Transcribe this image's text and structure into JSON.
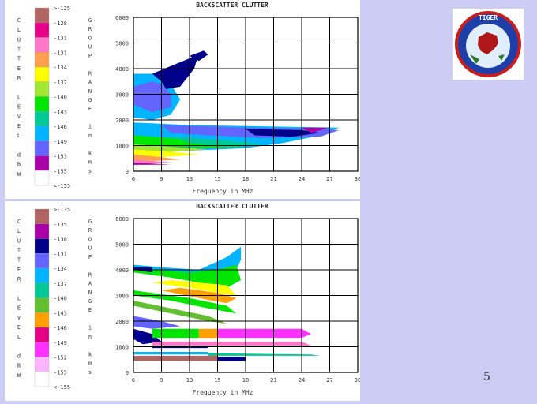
{
  "page_number": "5",
  "logo": {
    "text": "TIGER",
    "icon": "tiger-radar-logo-icon",
    "colors": {
      "ring": "#1e3fa8",
      "inner": "#dfeefa",
      "land": "#b01818",
      "outer_ring": "#c81e1e"
    }
  },
  "colors": {
    "background": "#ccccf5",
    "panel": "#ffffff"
  },
  "chart_data": [
    {
      "type": "heatmap",
      "title": "BACKSCATTER CLUTTER",
      "xlabel": "Frequency in MHz",
      "ylabel": "GROUP RANGE in kms",
      "legend_label": "CLUTTER LEVEL dBW",
      "x_ticks": [
        "6",
        "9",
        "13",
        "15",
        "18",
        "21",
        "24",
        "27",
        "30"
      ],
      "y_ticks": [
        "0",
        "1000",
        "2000",
        "3000",
        "4000",
        "5000",
        "6000"
      ],
      "xlim": [
        6,
        30
      ],
      "ylim": [
        0,
        6000
      ],
      "grid": true,
      "legend": [
        {
          "label": ">-125",
          "color": "#b06464"
        },
        {
          "label": "-128",
          "color": "#e60087"
        },
        {
          "label": "-131",
          "color": "#ff78c8"
        },
        {
          "label": "-131",
          "color": "#ffa050"
        },
        {
          "label": "-134",
          "color": "#ffff00"
        },
        {
          "label": "-137",
          "color": "#a0e632"
        },
        {
          "label": "-140",
          "color": "#00e600"
        },
        {
          "label": "-143",
          "color": "#00c896"
        },
        {
          "label": "-146",
          "color": "#00b4ff"
        },
        {
          "label": "-149",
          "color": "#6464ff"
        },
        {
          "label": "-153",
          "color": "#aa00aa"
        },
        {
          "label": "-155",
          "color": "#ffffff"
        },
        {
          "label": "<-155",
          "color": "#ffffff"
        }
      ],
      "regions": [
        {
          "color": "#00b4ff",
          "points": [
            [
              6,
              3800
            ],
            [
              9,
              3800
            ],
            [
              10,
              3400
            ],
            [
              11,
              2800
            ],
            [
              10,
              2200
            ],
            [
              8,
              2000
            ],
            [
              6,
              2100
            ]
          ]
        },
        {
          "color": "#6464ff",
          "points": [
            [
              6,
              3300
            ],
            [
              8,
              3500
            ],
            [
              9,
              3400
            ],
            [
              10,
              3000
            ],
            [
              10,
              2500
            ],
            [
              8,
              2300
            ],
            [
              6,
              2600
            ]
          ]
        },
        {
          "color": "#00008b",
          "points": [
            [
              8,
              3800
            ],
            [
              10,
              4100
            ],
            [
              12,
              4400
            ],
            [
              13,
              4600
            ],
            [
              12.5,
              4000
            ],
            [
              11,
              3300
            ],
            [
              9.5,
              3200
            ],
            [
              9,
              3500
            ]
          ]
        },
        {
          "color": "#00008b",
          "points": [
            [
              12,
              4500
            ],
            [
              13.5,
              4700
            ],
            [
              14,
              4550
            ],
            [
              13,
              4300
            ]
          ]
        },
        {
          "color": "#00b4ff",
          "points": [
            [
              6,
              1900
            ],
            [
              12,
              1800
            ],
            [
              20,
              1750
            ],
            [
              28,
              1700
            ],
            [
              26,
              1400
            ],
            [
              22,
              1100
            ],
            [
              18,
              900
            ],
            [
              12,
              800
            ],
            [
              6,
              1200
            ]
          ]
        },
        {
          "color": "#6464ff",
          "points": [
            [
              9,
              1800
            ],
            [
              18,
              1700
            ],
            [
              26,
              1650
            ],
            [
              28,
              1600
            ],
            [
              26,
              1350
            ],
            [
              20,
              1300
            ],
            [
              14,
              1400
            ],
            [
              10,
              1500
            ]
          ]
        },
        {
          "color": "#00008b",
          "points": [
            [
              18,
              1650
            ],
            [
              24,
              1600
            ],
            [
              26,
              1500
            ],
            [
              23,
              1350
            ],
            [
              19,
              1400
            ]
          ]
        },
        {
          "color": "#aa00aa",
          "points": [
            [
              24,
              1700
            ],
            [
              27,
              1700
            ],
            [
              25,
              1500
            ]
          ]
        },
        {
          "color": "#00e600",
          "points": [
            [
              6,
              1400
            ],
            [
              10,
              1300
            ],
            [
              14,
              1100
            ],
            [
              18,
              950
            ],
            [
              14,
              900
            ],
            [
              10,
              950
            ],
            [
              6,
              1050
            ]
          ]
        },
        {
          "color": "#00c896",
          "points": [
            [
              10,
              1350
            ],
            [
              16,
              1200
            ],
            [
              20,
              1050
            ],
            [
              16,
              950
            ],
            [
              12,
              1100
            ]
          ]
        },
        {
          "color": "#a0e632",
          "points": [
            [
              6,
              1050
            ],
            [
              10,
              950
            ],
            [
              14,
              850
            ],
            [
              10,
              750
            ],
            [
              6,
              800
            ]
          ]
        },
        {
          "color": "#ffff00",
          "points": [
            [
              6,
              850
            ],
            [
              10,
              750
            ],
            [
              13,
              650
            ],
            [
              9,
              550
            ],
            [
              6,
              600
            ]
          ]
        },
        {
          "color": "#ffa050",
          "points": [
            [
              6,
              650
            ],
            [
              9,
              550
            ],
            [
              11,
              450
            ],
            [
              8,
              400
            ],
            [
              6,
              420
            ]
          ]
        },
        {
          "color": "#ff78c8",
          "points": [
            [
              6,
              450
            ],
            [
              8,
              400
            ],
            [
              10,
              350
            ],
            [
              8,
              300
            ],
            [
              6,
              320
            ]
          ]
        },
        {
          "color": "#aa00aa",
          "points": [
            [
              6,
              330
            ],
            [
              8,
              300
            ],
            [
              10,
              260
            ],
            [
              6,
              250
            ]
          ]
        }
      ]
    },
    {
      "type": "heatmap",
      "title": "BACKSCATTER CLUTTER",
      "xlabel": "Frequency in MHz",
      "ylabel": "GROUP RANGE in kms",
      "legend_label": "CLUTTER LEVEL dBW",
      "x_ticks": [
        "6",
        "9",
        "13",
        "15",
        "18",
        "21",
        "24",
        "27",
        "30"
      ],
      "y_ticks": [
        "0",
        "1000",
        "2000",
        "3000",
        "4000",
        "5000",
        "6000"
      ],
      "xlim": [
        6,
        30
      ],
      "ylim": [
        0,
        6000
      ],
      "grid": true,
      "legend": [
        {
          "label": ">-135",
          "color": "#b06464"
        },
        {
          "label": "-135",
          "color": "#aa00aa"
        },
        {
          "label": "-138",
          "color": "#00008b"
        },
        {
          "label": "-131",
          "color": "#6464ff"
        },
        {
          "label": "-134",
          "color": "#00b4ff"
        },
        {
          "label": "-137",
          "color": "#00c896"
        },
        {
          "label": "-140",
          "color": "#64be32"
        },
        {
          "label": "-143",
          "color": "#ffa000"
        },
        {
          "label": "-146",
          "color": "#e60087"
        },
        {
          "label": "-149",
          "color": "#ff32ff"
        },
        {
          "label": "-152",
          "color": "#ffb4ff"
        },
        {
          "label": "-155",
          "color": "#ffffff"
        },
        {
          "label": "<-155",
          "color": "#ffffff"
        }
      ],
      "regions": [
        {
          "color": "#00b4ff",
          "points": [
            [
              6,
              4000
            ],
            [
              9,
              3950
            ],
            [
              12,
              3800
            ],
            [
              15,
              3700
            ],
            [
              17,
              4000
            ],
            [
              17.5,
              4400
            ],
            [
              17.5,
              4900
            ],
            [
              16,
              4500
            ],
            [
              13,
              4000
            ],
            [
              9,
              4100
            ],
            [
              6,
              4200
            ]
          ]
        },
        {
          "color": "#00e600",
          "points": [
            [
              6,
              3900
            ],
            [
              10,
              3700
            ],
            [
              13,
              3500
            ],
            [
              16,
              3300
            ],
            [
              17.5,
              3600
            ],
            [
              17,
              4200
            ],
            [
              15,
              4000
            ],
            [
              12,
              3900
            ],
            [
              8,
              4000
            ],
            [
              6,
              4000
            ]
          ]
        },
        {
          "color": "#ffff00",
          "points": [
            [
              8,
              3500
            ],
            [
              12,
              3300
            ],
            [
              15,
              3100
            ],
            [
              17,
              3000
            ],
            [
              16,
              3400
            ],
            [
              13,
              3500
            ],
            [
              10,
              3600
            ]
          ]
        },
        {
          "color": "#ffa000",
          "points": [
            [
              9,
              3200
            ],
            [
              13,
              2900
            ],
            [
              16,
              2700
            ],
            [
              17,
              2900
            ],
            [
              15,
              3100
            ],
            [
              11,
              3300
            ]
          ]
        },
        {
          "color": "#00e600",
          "points": [
            [
              6,
              3000
            ],
            [
              10,
              2800
            ],
            [
              14,
              2500
            ],
            [
              17,
              2300
            ],
            [
              16,
              2600
            ],
            [
              12,
              2900
            ],
            [
              8,
              3100
            ],
            [
              6,
              3200
            ]
          ]
        },
        {
          "color": "#64be32",
          "points": [
            [
              6,
              2600
            ],
            [
              10,
              2300
            ],
            [
              14,
              2000
            ],
            [
              16,
              1900
            ],
            [
              14,
              2200
            ],
            [
              10,
              2500
            ],
            [
              6,
              2800
            ]
          ]
        },
        {
          "color": "#6464ff",
          "points": [
            [
              6,
              2200
            ],
            [
              9,
              2000
            ],
            [
              11,
              1800
            ],
            [
              8,
              1700
            ],
            [
              6,
              1800
            ]
          ]
        },
        {
          "color": "#00008b",
          "points": [
            [
              6,
              4000
            ],
            [
              8,
              3900
            ],
            [
              8,
              4100
            ],
            [
              6,
              4100
            ]
          ]
        },
        {
          "color": "#00008b",
          "points": [
            [
              6,
              1700
            ],
            [
              8,
              1500
            ],
            [
              9,
              1200
            ],
            [
              7,
              1100
            ],
            [
              6,
              1300
            ]
          ]
        },
        {
          "color": "#ff32ff",
          "points": [
            [
              15,
              1700
            ],
            [
              24,
              1700
            ],
            [
              25,
              1500
            ],
            [
              24,
              1350
            ],
            [
              15,
              1350
            ]
          ]
        },
        {
          "color": "#00e600",
          "points": [
            [
              8,
              1700
            ],
            [
              13,
              1700
            ],
            [
              13,
              1350
            ],
            [
              8,
              1350
            ]
          ]
        },
        {
          "color": "#ffa000",
          "points": [
            [
              13,
              1700
            ],
            [
              15,
              1700
            ],
            [
              15,
              1350
            ],
            [
              13,
              1350
            ]
          ]
        },
        {
          "color": "#ff78c8",
          "points": [
            [
              8,
              1200
            ],
            [
              24,
              1200
            ],
            [
              25,
              1050
            ],
            [
              8,
              1050
            ]
          ]
        },
        {
          "color": "#00008b",
          "points": [
            [
              8,
              1000
            ],
            [
              14,
              1000
            ],
            [
              14,
              950
            ],
            [
              8,
              950
            ]
          ]
        },
        {
          "color": "#00b4ff",
          "points": [
            [
              6,
              800
            ],
            [
              14,
              800
            ],
            [
              14,
              700
            ],
            [
              6,
              700
            ]
          ]
        },
        {
          "color": "#00c896",
          "points": [
            [
              14,
              750
            ],
            [
              25,
              700
            ],
            [
              26,
              650
            ],
            [
              14,
              650
            ]
          ]
        },
        {
          "color": "#b06464",
          "points": [
            [
              6,
              650
            ],
            [
              15,
              650
            ],
            [
              15,
              450
            ],
            [
              6,
              450
            ]
          ]
        },
        {
          "color": "#00008b",
          "points": [
            [
              15,
              600
            ],
            [
              18,
              600
            ],
            [
              18,
              450
            ],
            [
              15,
              450
            ]
          ]
        }
      ]
    }
  ]
}
